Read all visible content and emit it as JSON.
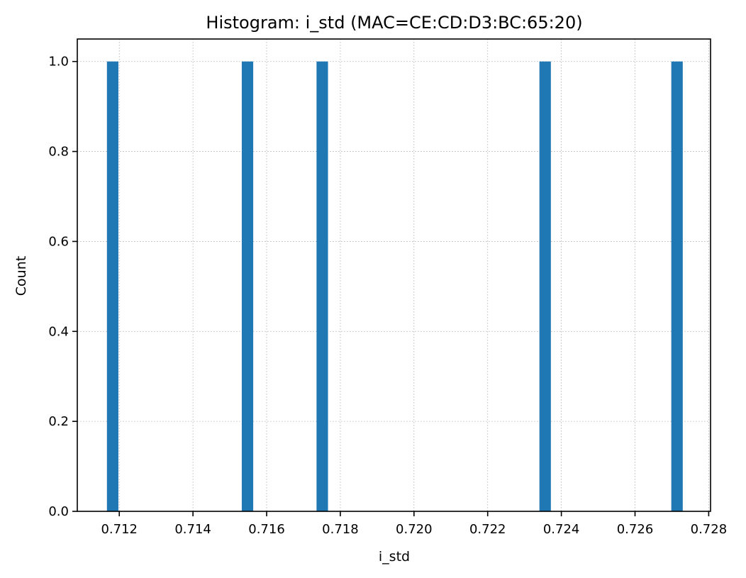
{
  "chart_data": {
    "type": "bar",
    "title": "Histogram: i_std (MAC=CE:CD:D3:BC:65:20)",
    "xlabel": "i_std",
    "ylabel": "Count",
    "xlim": [
      0.71086,
      0.72805
    ],
    "ylim": [
      0,
      1.05
    ],
    "bin_width": 0.000311,
    "bars": [
      {
        "x": 0.71182,
        "count": 1
      },
      {
        "x": 0.71548,
        "count": 1
      },
      {
        "x": 0.71751,
        "count": 1
      },
      {
        "x": 0.72356,
        "count": 1
      },
      {
        "x": 0.72714,
        "count": 1
      }
    ],
    "x_ticks": [
      {
        "value": 0.712,
        "label": "0.712"
      },
      {
        "value": 0.714,
        "label": "0.714"
      },
      {
        "value": 0.716,
        "label": "0.716"
      },
      {
        "value": 0.718,
        "label": "0.718"
      },
      {
        "value": 0.72,
        "label": "0.720"
      },
      {
        "value": 0.722,
        "label": "0.722"
      },
      {
        "value": 0.724,
        "label": "0.724"
      },
      {
        "value": 0.726,
        "label": "0.726"
      },
      {
        "value": 0.728,
        "label": "0.728"
      }
    ],
    "y_ticks": [
      {
        "value": 0.0,
        "label": "0.0"
      },
      {
        "value": 0.2,
        "label": "0.2"
      },
      {
        "value": 0.4,
        "label": "0.4"
      },
      {
        "value": 0.6,
        "label": "0.6"
      },
      {
        "value": 0.8,
        "label": "0.8"
      },
      {
        "value": 1.0,
        "label": "1.0"
      }
    ],
    "grid": true,
    "bar_color": "#1f77b4"
  }
}
